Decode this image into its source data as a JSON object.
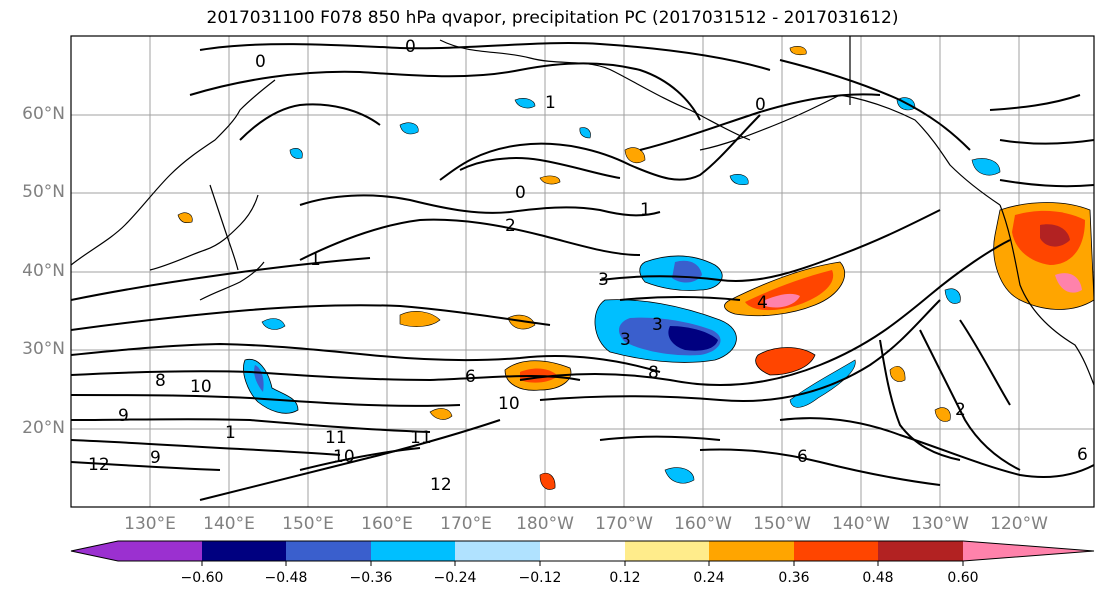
{
  "title": "2017031100 F078 850 hPa qvapor, precipitation PC (2017031512 - 2017031612)",
  "map": {
    "lat_labels": [
      "60°N",
      "50°N",
      "40°N",
      "30°N",
      "20°N"
    ],
    "lon_labels": [
      "130°E",
      "140°E",
      "150°E",
      "160°E",
      "170°E",
      "180°W",
      "170°W",
      "160°W",
      "150°W",
      "140°W",
      "130°W",
      "120°W"
    ],
    "contour_labels": [
      "0",
      "0",
      "0",
      "0",
      "1",
      "1",
      "1",
      "1",
      "2",
      "2",
      "3",
      "3",
      "3",
      "4",
      "6",
      "6",
      "6",
      "8",
      "8",
      "9",
      "9",
      "10",
      "10",
      "10",
      "11",
      "11",
      "12",
      "12"
    ]
  },
  "colorbar": {
    "colors": [
      "#9b30d0",
      "#000080",
      "#3a5fcd",
      "#00bfff",
      "#b0e2ff",
      "#ffffff",
      "#ffec8b",
      "#ffa500",
      "#ff4500",
      "#b22222",
      "#ff82ab"
    ],
    "ticks": [
      "−0.60",
      "−0.48",
      "−0.36",
      "−0.24",
      "−0.12",
      "0.12",
      "0.24",
      "0.36",
      "0.48",
      "0.60"
    ]
  }
}
